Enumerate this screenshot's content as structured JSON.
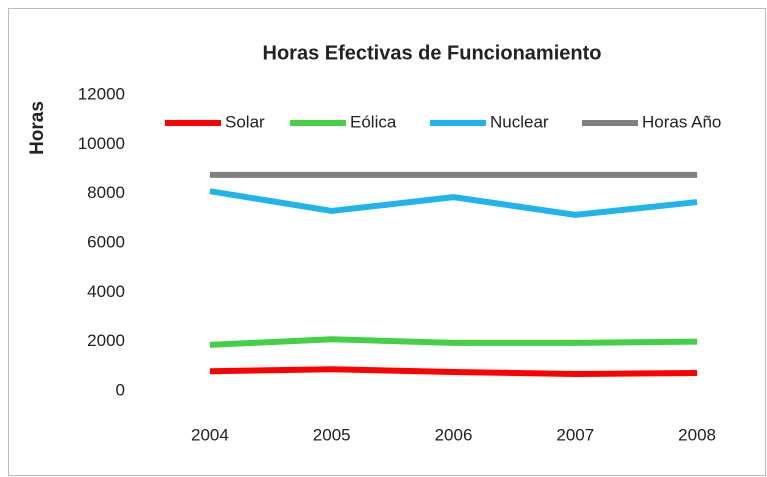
{
  "chart_data": {
    "type": "line",
    "title": "Horas Efectivas de Funcionamiento",
    "y_label": "Horas",
    "categories": [
      "2004",
      "2005",
      "2006",
      "2007",
      "2008"
    ],
    "series": [
      {
        "name": "Solar",
        "color": "#ff0000",
        "values": [
          800,
          880,
          770,
          690,
          730
        ]
      },
      {
        "name": "Eólica",
        "color": "#44d044",
        "values": [
          1870,
          2100,
          1950,
          1950,
          2000
        ]
      },
      {
        "name": "Nuclear",
        "color": "#1eb4ec",
        "values": [
          8100,
          7300,
          7860,
          7140,
          7660
        ]
      },
      {
        "name": "Horas Año",
        "color": "#808080",
        "values": [
          8760,
          8760,
          8760,
          8760,
          8760
        ]
      }
    ],
    "ylim": [
      0,
      12000
    ],
    "yticks": [
      0,
      2000,
      4000,
      6000,
      8000,
      10000,
      12000
    ],
    "legend": "top",
    "grid": false
  }
}
